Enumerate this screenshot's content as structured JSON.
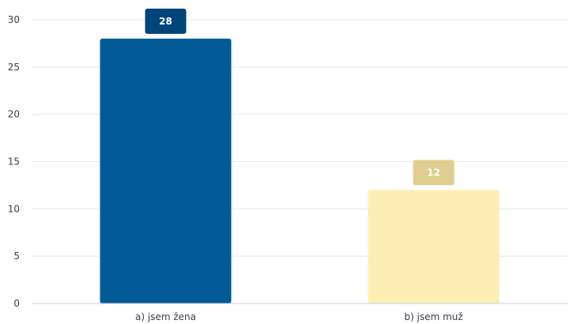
{
  "chart_data": {
    "type": "bar",
    "categories": [
      "a) jsem žena",
      "b) jsem muž"
    ],
    "values": [
      28,
      12
    ],
    "colors": [
      "#005b96",
      "#fdeeb3"
    ],
    "label_colors": [
      "#00457a",
      "#dfce8f"
    ],
    "title": "",
    "xlabel": "",
    "ylabel": "",
    "ylim": [
      0,
      30
    ],
    "yticks": [
      0,
      5,
      10,
      15,
      20,
      25,
      30
    ],
    "grid": true,
    "data_labels": true
  }
}
